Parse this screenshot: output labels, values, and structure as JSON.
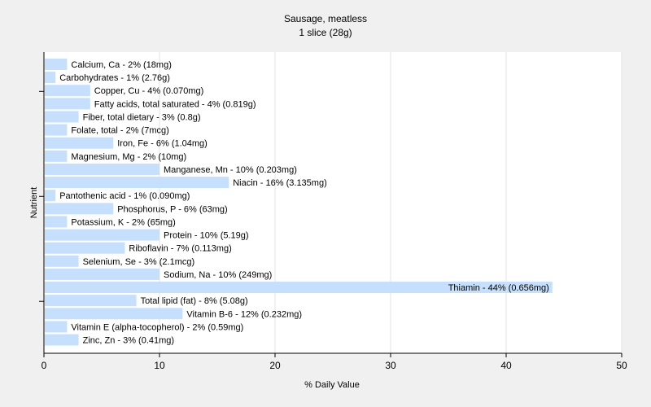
{
  "chart_data": {
    "type": "bar",
    "orientation": "horizontal",
    "title": "Sausage, meatless",
    "subtitle": "1 slice (28g)",
    "xlabel": "% Daily Value",
    "ylabel": "Nutrient",
    "xlim": [
      0,
      50
    ],
    "xticks": [
      0,
      10,
      20,
      30,
      40,
      50
    ],
    "grid": true,
    "bar_color": "#c6dffc",
    "categories": [
      "Calcium, Ca",
      "Carbohydrates",
      "Copper, Cu",
      "Fatty acids, total saturated",
      "Fiber, total dietary",
      "Folate, total",
      "Iron, Fe",
      "Magnesium, Mg",
      "Manganese, Mn",
      "Niacin",
      "Pantothenic acid",
      "Phosphorus, P",
      "Potassium, K",
      "Protein",
      "Riboflavin",
      "Selenium, Se",
      "Sodium, Na",
      "Thiamin",
      "Total lipid (fat)",
      "Vitamin B-6",
      "Vitamin E (alpha-tocopherol)",
      "Zinc, Zn"
    ],
    "values": [
      2,
      1,
      4,
      4,
      3,
      2,
      6,
      2,
      10,
      16,
      1,
      6,
      2,
      10,
      7,
      3,
      10,
      44,
      8,
      12,
      2,
      3
    ],
    "labels": [
      "Calcium, Ca - 2% (18mg)",
      "Carbohydrates - 1% (2.76g)",
      "Copper, Cu - 4% (0.070mg)",
      "Fatty acids, total saturated - 4% (0.819g)",
      "Fiber, total dietary - 3% (0.8g)",
      "Folate, total - 2% (7mcg)",
      "Iron, Fe - 6% (1.04mg)",
      "Magnesium, Mg - 2% (10mg)",
      "Manganese, Mn - 10% (0.203mg)",
      "Niacin - 16% (3.135mg)",
      "Pantothenic acid - 1% (0.090mg)",
      "Phosphorus, P - 6% (63mg)",
      "Potassium, K - 2% (65mg)",
      "Protein - 10% (5.19g)",
      "Riboflavin - 7% (0.113mg)",
      "Selenium, Se - 3% (2.1mcg)",
      "Sodium, Na - 10% (249mg)",
      "Thiamin - 44% (0.656mg)",
      "Total lipid (fat) - 8% (5.08g)",
      "Vitamin B-6 - 12% (0.232mg)",
      "Vitamin E (alpha-tocopherol) - 2% (0.59mg)",
      "Zinc, Zn - 3% (0.41mg)"
    ]
  }
}
